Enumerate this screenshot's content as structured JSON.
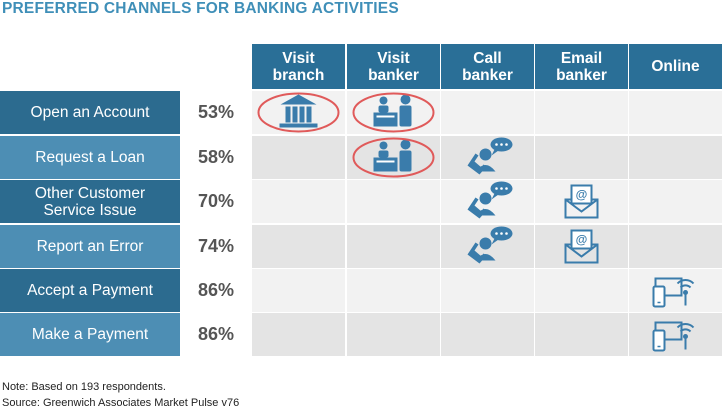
{
  "title": "PREFERRED CHANNELS FOR BANKING ACTIVITIES",
  "colors": {
    "title": "#3f8fb8",
    "header_bg": "#2a6f97",
    "row_label_a": "#2c6b8f",
    "row_label_b": "#4d8eb4",
    "cell_light": "#f2f2f2",
    "cell_dark": "#e4e4e4",
    "icon": "#3a7cab",
    "highlight_circle": "#e05a5a"
  },
  "chart_data": {
    "type": "table",
    "title": "PREFERRED CHANNELS FOR BANKING ACTIVITIES",
    "columns": [
      {
        "label": "Visit\nbranch",
        "icon": "bank-icon"
      },
      {
        "label": "Visit\nbanker",
        "icon": "banker-desk-icon"
      },
      {
        "label": "Call\nbanker",
        "icon": "phone-call-icon"
      },
      {
        "label": "Email\nbanker",
        "icon": "email-icon"
      },
      {
        "label": "Online",
        "icon": "devices-online-icon"
      }
    ],
    "rows": [
      {
        "label": "Open an Account",
        "percent": "53%",
        "value": 53,
        "channels": [
          0,
          1
        ],
        "highlighted": [
          0,
          1
        ]
      },
      {
        "label": "Request a Loan",
        "percent": "58%",
        "value": 58,
        "channels": [
          1,
          2
        ],
        "highlighted": [
          1
        ]
      },
      {
        "label": "Other Customer\nService Issue",
        "percent": "70%",
        "value": 70,
        "channels": [
          2,
          3
        ],
        "highlighted": []
      },
      {
        "label": "Report an Error",
        "percent": "74%",
        "value": 74,
        "channels": [
          2,
          3
        ],
        "highlighted": []
      },
      {
        "label": "Accept a Payment",
        "percent": "86%",
        "value": 86,
        "channels": [
          4
        ],
        "highlighted": []
      },
      {
        "label": "Make a Payment",
        "percent": "86%",
        "value": 86,
        "channels": [
          4
        ],
        "highlighted": []
      }
    ]
  },
  "notes": {
    "note": "Note: Based on 193 respondents.",
    "source": "Source: Greenwich Associates Market Pulse v76"
  }
}
